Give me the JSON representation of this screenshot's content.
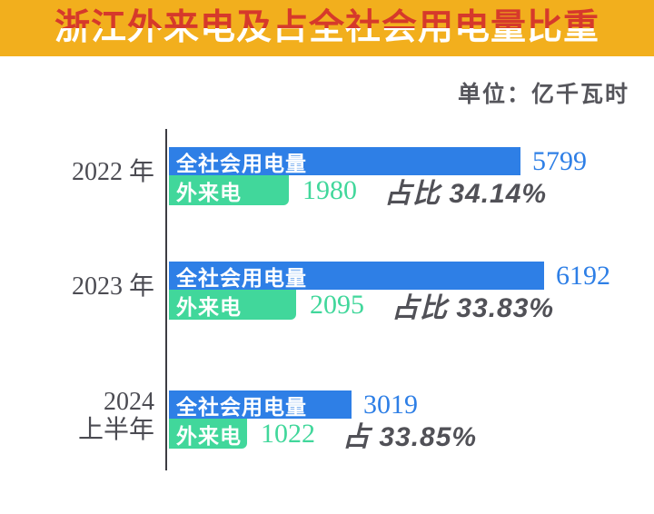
{
  "header": {
    "title": "浙江外来电及占全社会用电量比重",
    "unit_label": "单位：亿千瓦时"
  },
  "colors": {
    "banner_bg": "#F2AF1D",
    "title_text_top": "#D6392B",
    "title_text_bottom": "#FFFFFF",
    "total_bar": "#2E7FE6",
    "external_bar": "#41D79B",
    "share_text": "#515157",
    "year_text": "#4B4B52"
  },
  "chart_data": {
    "type": "bar",
    "orientation": "horizontal",
    "title": "浙江外来电及占全社会用电量比重",
    "unit": "亿千瓦时",
    "series_names": {
      "total": "全社会用电量",
      "external": "外来电"
    },
    "value_axis_hidden": true,
    "groups": [
      {
        "category": "2022 年",
        "category_lines": [
          "2022 年"
        ],
        "total": 5799,
        "external": 1980,
        "share_pct": 34.14,
        "share_label": "占比 34.14%"
      },
      {
        "category": "2023 年",
        "category_lines": [
          "2023 年"
        ],
        "total": 6192,
        "external": 2095,
        "share_pct": 33.83,
        "share_label": "占比 33.83%"
      },
      {
        "category": "2024 上半年",
        "category_lines": [
          "2024",
          "上半年"
        ],
        "total": 3019,
        "external": 1022,
        "share_pct": 33.85,
        "share_label": "占 33.85%"
      }
    ]
  }
}
